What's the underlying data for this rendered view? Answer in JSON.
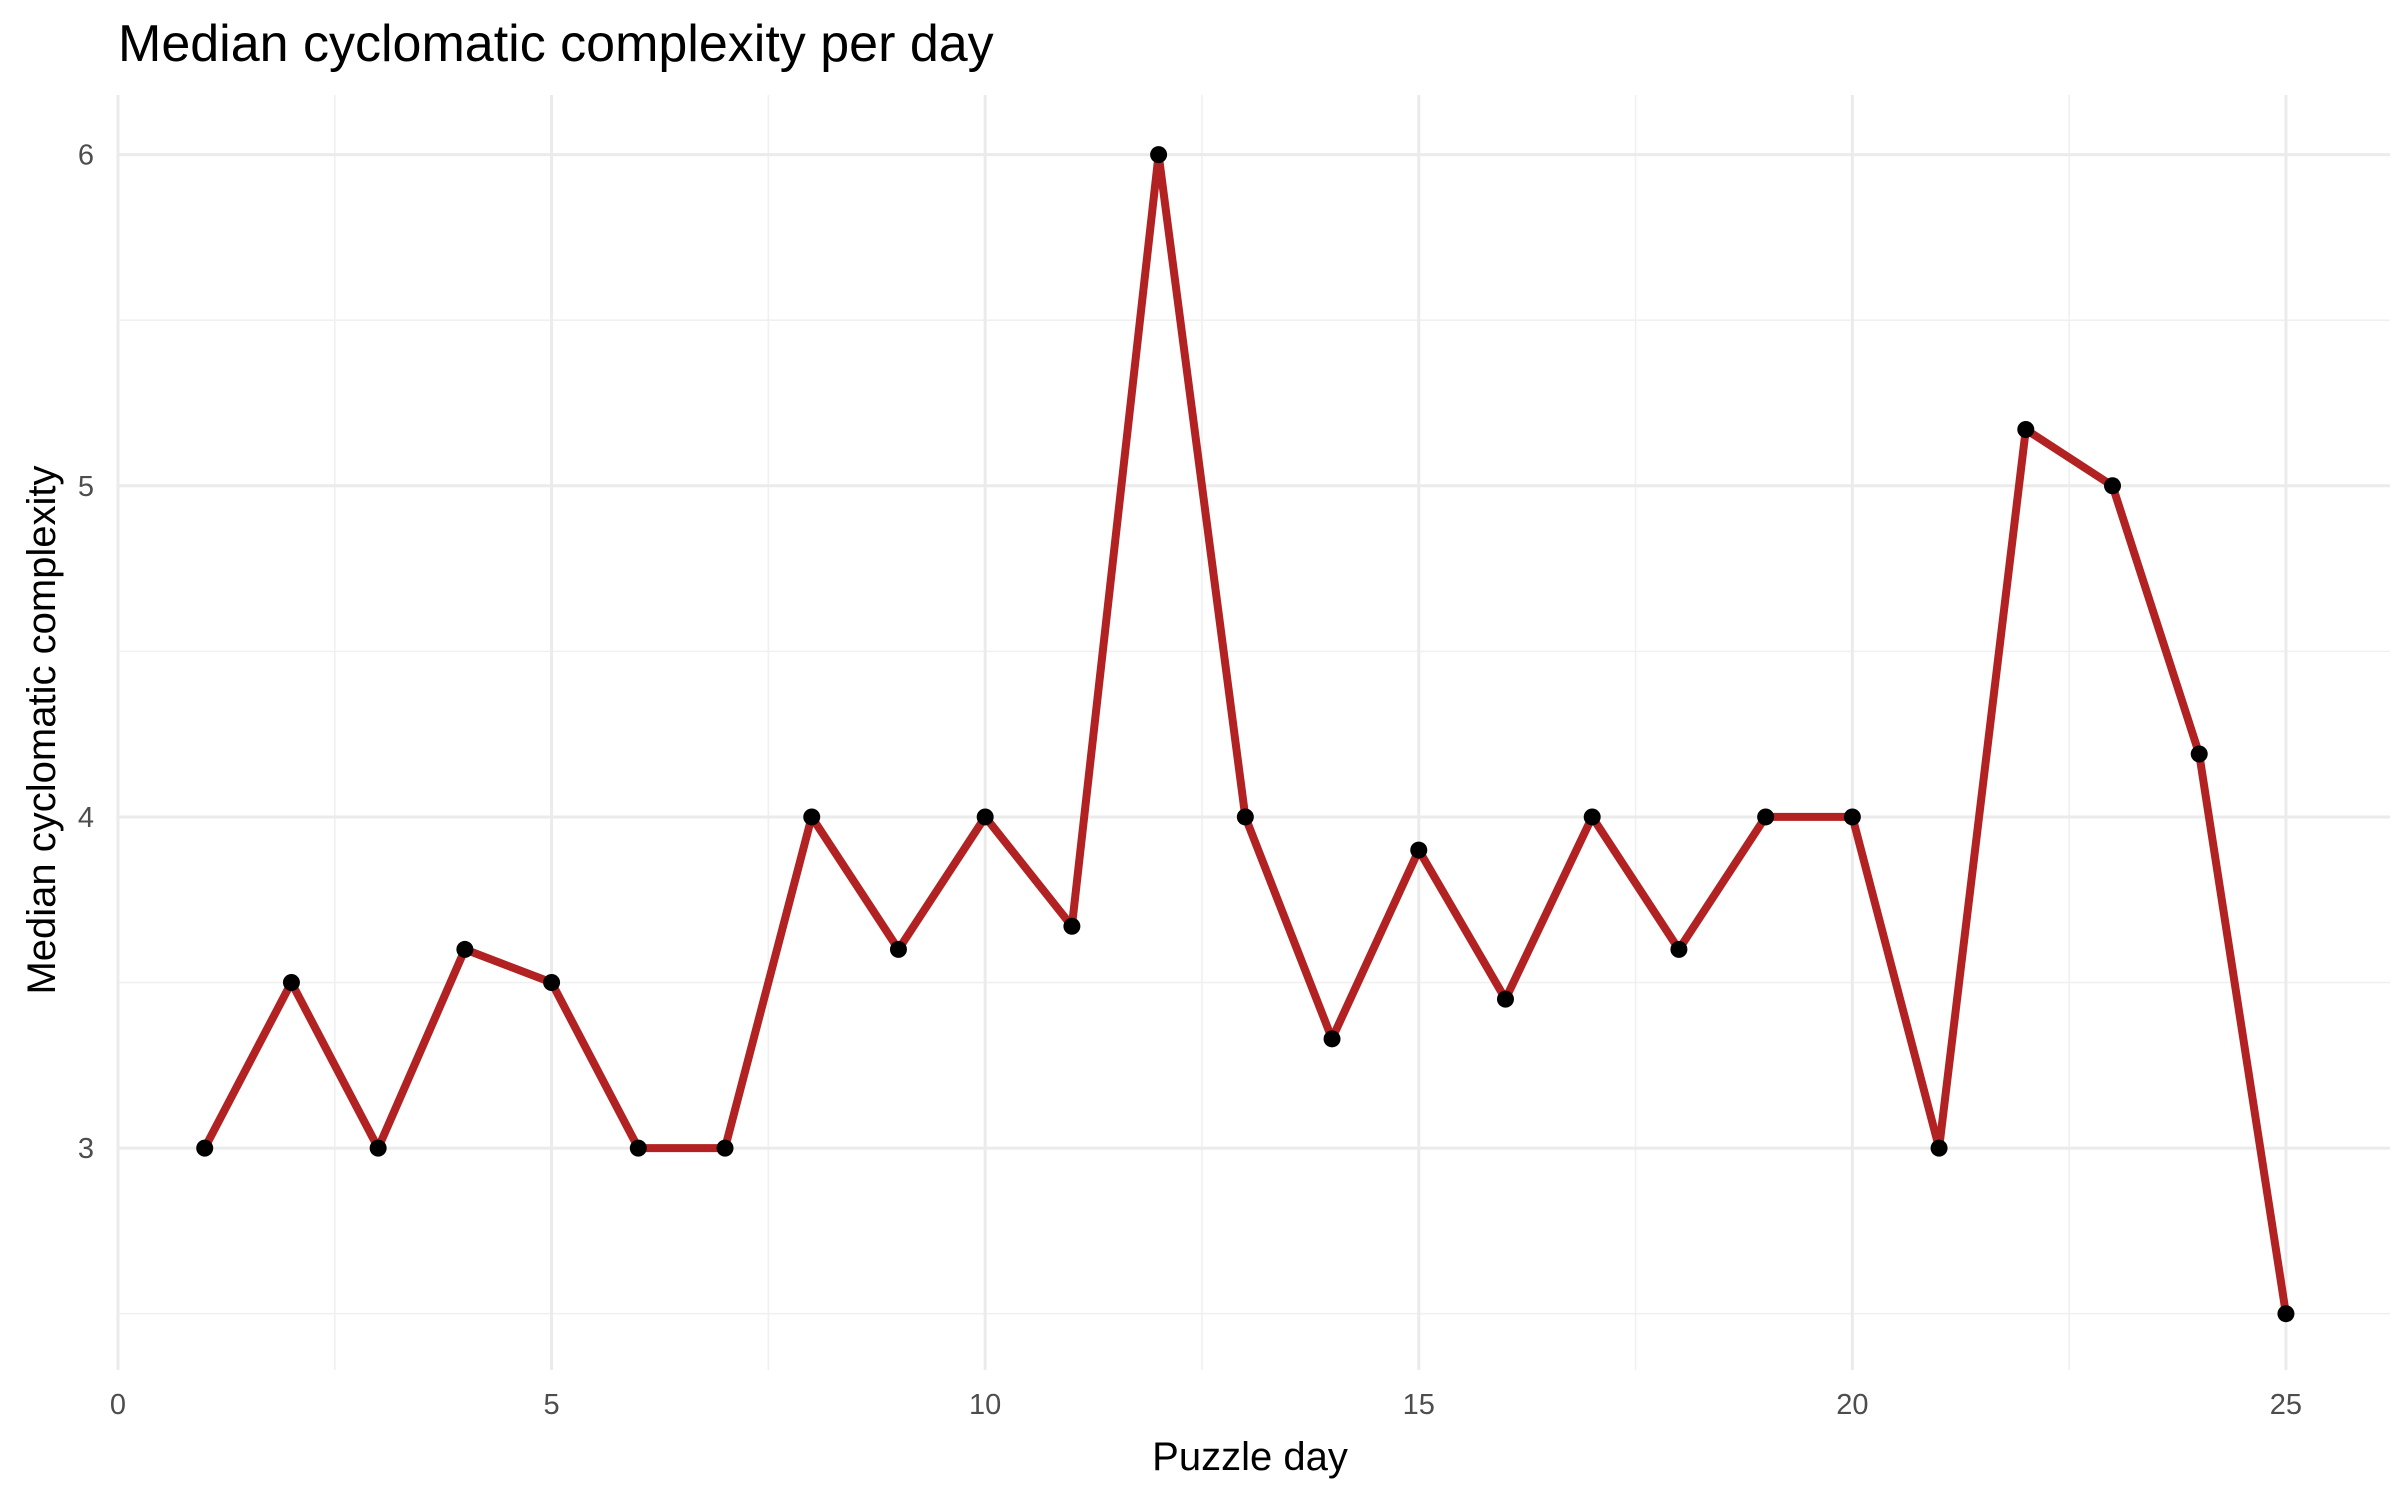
{
  "chart_data": {
    "type": "line",
    "title": "Median cyclomatic complexity per day",
    "xlabel": "Puzzle day",
    "ylabel": "Median cyclomatic complexity",
    "xlim": [
      0,
      26.2
    ],
    "ylim": [
      2.33,
      6.18
    ],
    "x_ticks": [
      0,
      5,
      10,
      15,
      20,
      25
    ],
    "y_ticks": [
      3,
      4,
      5,
      6
    ],
    "grid": true,
    "legend": "none",
    "line_color": "#b22222",
    "point_color": "#000000",
    "series": [
      {
        "x": [
          1,
          2,
          3,
          4,
          5,
          6,
          7,
          8,
          9,
          10,
          11,
          12,
          13,
          14,
          15,
          16,
          17,
          18,
          19,
          20,
          21,
          22,
          23,
          24,
          25
        ],
        "y": [
          3,
          3.5,
          3,
          3.6,
          3.5,
          3,
          3,
          4,
          3.6,
          4,
          3.67,
          6,
          4,
          3.33,
          3.9,
          3.45,
          4,
          3.6,
          4,
          4,
          3,
          5.17,
          5,
          4.19,
          2.5
        ]
      }
    ]
  }
}
